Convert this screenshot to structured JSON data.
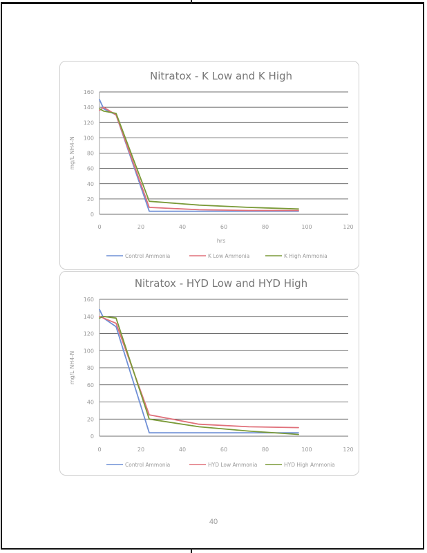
{
  "page": {
    "number": "40"
  },
  "colors": {
    "control": "#6f8fd6",
    "low": "#e0707a",
    "high": "#7a9a38",
    "gridline": "#3c3c3c",
    "tick_text": "#9a9a9a",
    "title_text": "#777777"
  },
  "chart_data": [
    {
      "type": "line",
      "title": "Nitratox - K Low and K High",
      "xlabel": "hrs",
      "ylabel": "mg/L NH4-N",
      "xlim": [
        0,
        120
      ],
      "ylim": [
        0,
        160
      ],
      "x_ticks": [
        "0",
        "20",
        "40",
        "60",
        "80",
        "100",
        "120"
      ],
      "y_ticks": [
        "0",
        "20",
        "40",
        "60",
        "80",
        "100",
        "120",
        "140",
        "160"
      ],
      "grid": "horizontal",
      "legend": "bottom",
      "series": [
        {
          "name": "Control Ammonia",
          "color_key": "control",
          "x": [
            0,
            2,
            8,
            24,
            48,
            72,
            96
          ],
          "y": [
            150,
            138,
            130,
            4,
            4,
            4,
            4
          ]
        },
        {
          "name": "K Low Ammonia",
          "color_key": "low",
          "x": [
            0,
            2,
            8,
            24,
            48,
            72,
            96
          ],
          "y": [
            136,
            140,
            130,
            9,
            6,
            5,
            5
          ]
        },
        {
          "name": "K High Ammonia",
          "color_key": "high",
          "x": [
            0,
            2,
            8,
            24,
            48,
            72,
            96
          ],
          "y": [
            138,
            135,
            132,
            17,
            12,
            9,
            7
          ]
        }
      ]
    },
    {
      "type": "line",
      "title": "Nitratox - HYD Low and HYD High",
      "xlabel": "",
      "ylabel": "mg/L NH4-N",
      "xlim": [
        0,
        120
      ],
      "ylim": [
        0,
        160
      ],
      "x_ticks": [
        "0",
        "20",
        "40",
        "60",
        "80",
        "100",
        "120"
      ],
      "y_ticks": [
        "0",
        "20",
        "40",
        "60",
        "80",
        "100",
        "120",
        "140",
        "160"
      ],
      "grid": "horizontal",
      "legend": "bottom",
      "series": [
        {
          "name": "Control Ammonia",
          "color_key": "control",
          "x": [
            0,
            2,
            8,
            24,
            48,
            72,
            96
          ],
          "y": [
            148,
            138,
            128,
            4,
            4,
            4,
            4
          ]
        },
        {
          "name": "HYD Low Ammonia",
          "color_key": "low",
          "x": [
            0,
            2,
            8,
            24,
            48,
            72,
            96
          ],
          "y": [
            140,
            138,
            132,
            25,
            14,
            11,
            10
          ]
        },
        {
          "name": "HYD High Ammonia",
          "color_key": "high",
          "x": [
            0,
            2,
            8,
            24,
            48,
            72,
            96
          ],
          "y": [
            138,
            140,
            138,
            20,
            11,
            6,
            2
          ]
        }
      ]
    }
  ]
}
